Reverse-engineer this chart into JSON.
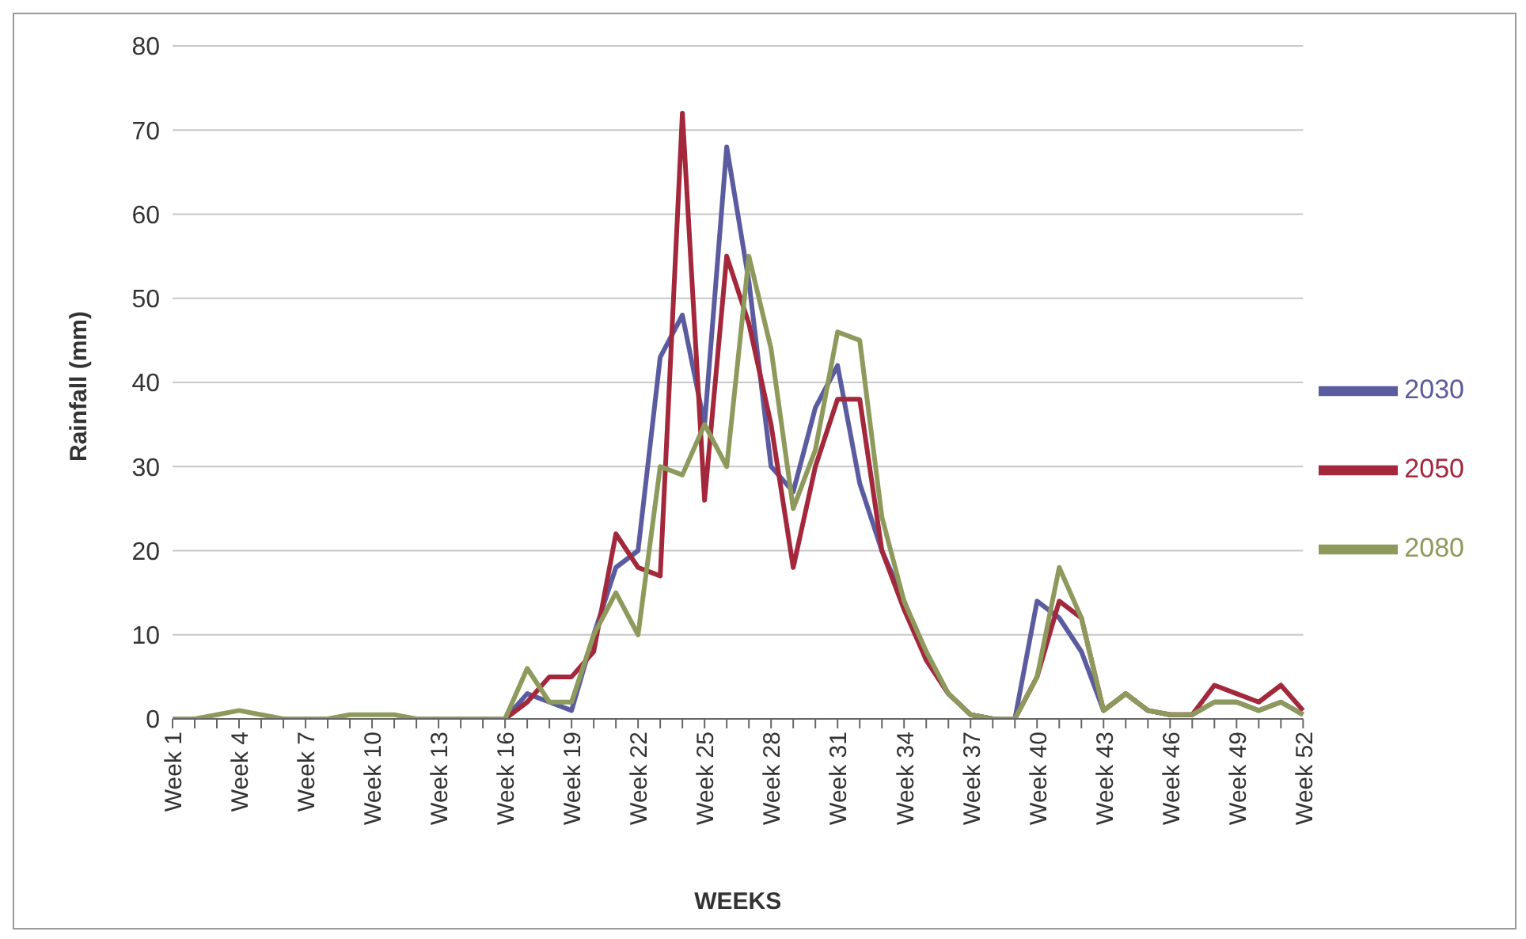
{
  "chart_data": {
    "type": "line",
    "xlabel": "WEEKS",
    "ylabel": "Rainfall (mm)",
    "categories": [
      "Week 1",
      null,
      null,
      "Week 4",
      null,
      null,
      "Week 7",
      null,
      null,
      "Week 10",
      null,
      null,
      "Week 13",
      null,
      null,
      "Week 16",
      null,
      null,
      "Week 19",
      null,
      null,
      "Week 22",
      null,
      null,
      "Week 25",
      null,
      null,
      "Week 28",
      null,
      null,
      "Week 31",
      null,
      null,
      "Week 34",
      null,
      null,
      "Week 37",
      null,
      null,
      "Week 40",
      null,
      null,
      "Week 43",
      null,
      null,
      "Week 46",
      null,
      null,
      "Week 49",
      null,
      null,
      "Week 52"
    ],
    "series": [
      {
        "name": "2030",
        "color": "#5b5ba0",
        "values": [
          null,
          null,
          null,
          null,
          null,
          null,
          null,
          null,
          null,
          null,
          null,
          null,
          null,
          null,
          0,
          0,
          3,
          2,
          1,
          10,
          18,
          20,
          43,
          48,
          35,
          68,
          52,
          30,
          27,
          37,
          42,
          28,
          20,
          14,
          7,
          3,
          0.5,
          0,
          0,
          14,
          12,
          8,
          1,
          3,
          1,
          0.5,
          0.5,
          2,
          2,
          1,
          2,
          0.5
        ]
      },
      {
        "name": "2050",
        "color": "#a3283c",
        "values": [
          null,
          null,
          null,
          null,
          null,
          null,
          null,
          null,
          null,
          null,
          null,
          null,
          null,
          null,
          0,
          0,
          2,
          5,
          5,
          8,
          22,
          18,
          17,
          72,
          26,
          55,
          47,
          35,
          18,
          30,
          38,
          38,
          20,
          13,
          7,
          3,
          0.5,
          0,
          0,
          5,
          14,
          12,
          1,
          3,
          1,
          0.5,
          0.5,
          4,
          3,
          2,
          4,
          1
        ]
      },
      {
        "name": "2080",
        "color": "#8e9a5c",
        "values": [
          0,
          0,
          0.5,
          1,
          0.5,
          0,
          0,
          0,
          0.5,
          0.5,
          0.5,
          0,
          0,
          0,
          0,
          0,
          6,
          2,
          2,
          10,
          15,
          10,
          30,
          29,
          35,
          30,
          55,
          44,
          25,
          32,
          46,
          45,
          24,
          14,
          8,
          3,
          0.5,
          0,
          0,
          5,
          18,
          12,
          1,
          3,
          1,
          0.5,
          0.5,
          2,
          2,
          1,
          2,
          0.5
        ]
      }
    ],
    "ylim": [
      0,
      80
    ],
    "yticks": [
      0,
      10,
      20,
      30,
      40,
      50,
      60,
      70,
      80
    ],
    "grid": "y",
    "legend": "right",
    "marker": "none",
    "line_style": "solid"
  }
}
